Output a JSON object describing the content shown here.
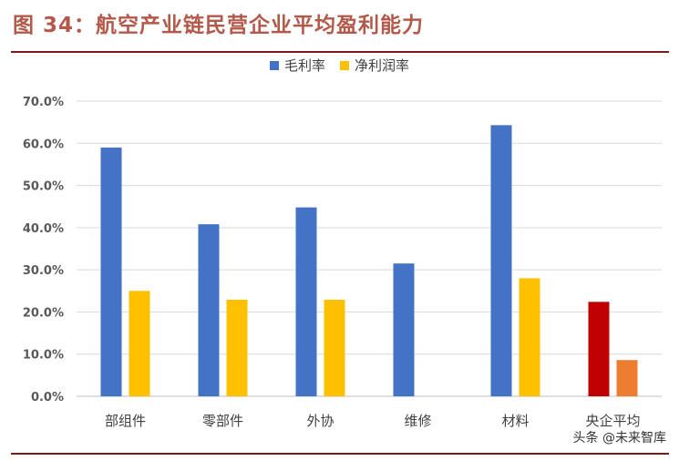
{
  "header": {
    "title": "图 34：航空产业链民营企业平均盈利能力"
  },
  "watermark": "头条 @未来智库",
  "colors": {
    "title": "#b4584a",
    "gross": "#4472c4",
    "net": "#ffc000",
    "soe_gross": "#c00000",
    "soe_net": "#ed7d31",
    "rule": "#7a1a1a"
  },
  "chart_data": {
    "type": "bar",
    "categories": [
      "部组件",
      "零部件",
      "外协",
      "维修",
      "材料",
      "央企平均"
    ],
    "series": [
      {
        "name": "毛利率",
        "values": [
          59.0,
          40.8,
          44.8,
          31.5,
          64.3,
          22.4
        ]
      },
      {
        "name": "净利润率",
        "values": [
          25.0,
          22.9,
          22.9,
          null,
          28.0,
          8.6
        ]
      }
    ],
    "highlight": {
      "category": "央企平均",
      "colors": [
        "#c00000",
        "#ed7d31"
      ]
    },
    "ylim": [
      0,
      70
    ],
    "yticks": [
      "0.0%",
      "10.0%",
      "20.0%",
      "30.0%",
      "40.0%",
      "50.0%",
      "60.0%",
      "70.0%"
    ],
    "ytick_values": [
      0,
      10,
      20,
      30,
      40,
      50,
      60,
      70
    ],
    "grid": true,
    "legend": "top-center"
  }
}
